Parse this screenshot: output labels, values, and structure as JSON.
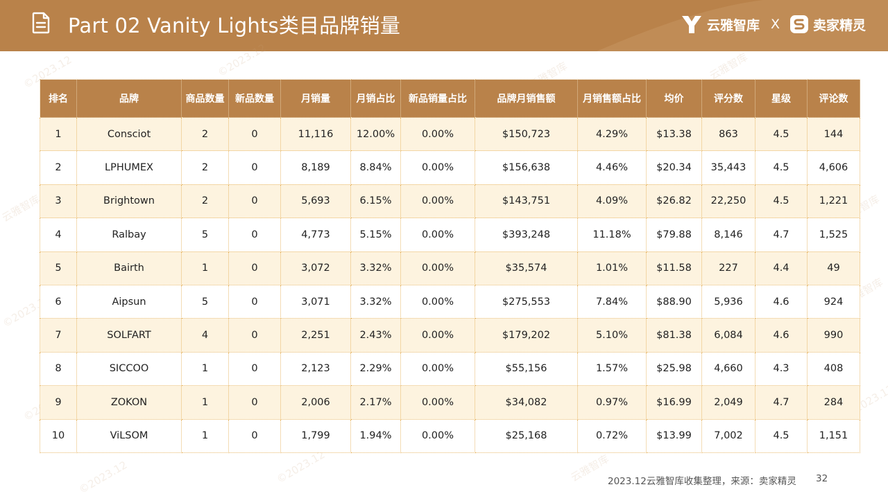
{
  "header": {
    "title": "Part 02 Vanity Lights类目品牌销量",
    "brand_left": "云雅智库",
    "brand_sep": "X",
    "brand_right": "卖家精灵"
  },
  "table": {
    "columns": [
      "排名",
      "品牌",
      "商品数量",
      "新品数量",
      "月销量",
      "月销占比",
      "新品销量占比",
      "品牌月销售额",
      "月销售额占比",
      "均价",
      "评分数",
      "星级",
      "评论数"
    ],
    "rows": [
      [
        "1",
        "Consciot",
        "2",
        "0",
        "11,116",
        "12.00%",
        "0.00%",
        "$150,723",
        "4.29%",
        "$13.38",
        "863",
        "4.5",
        "144"
      ],
      [
        "2",
        "LPHUMEX",
        "2",
        "0",
        "8,189",
        "8.84%",
        "0.00%",
        "$156,638",
        "4.46%",
        "$20.34",
        "35,443",
        "4.5",
        "4,606"
      ],
      [
        "3",
        "Brightown",
        "2",
        "0",
        "5,693",
        "6.15%",
        "0.00%",
        "$143,751",
        "4.09%",
        "$26.82",
        "22,250",
        "4.5",
        "1,221"
      ],
      [
        "4",
        "Ralbay",
        "5",
        "0",
        "4,773",
        "5.15%",
        "0.00%",
        "$393,248",
        "11.18%",
        "$79.88",
        "8,146",
        "4.7",
        "1,525"
      ],
      [
        "5",
        "Bairth",
        "1",
        "0",
        "3,072",
        "3.32%",
        "0.00%",
        "$35,574",
        "1.01%",
        "$11.58",
        "227",
        "4.4",
        "49"
      ],
      [
        "6",
        "Aipsun",
        "5",
        "0",
        "3,071",
        "3.32%",
        "0.00%",
        "$275,553",
        "7.84%",
        "$88.90",
        "5,936",
        "4.6",
        "924"
      ],
      [
        "7",
        "SOLFART",
        "4",
        "0",
        "2,251",
        "2.43%",
        "0.00%",
        "$179,202",
        "5.10%",
        "$81.38",
        "6,084",
        "4.6",
        "990"
      ],
      [
        "8",
        "SICCOO",
        "1",
        "0",
        "2,123",
        "2.29%",
        "0.00%",
        "$55,156",
        "1.57%",
        "$25.98",
        "4,660",
        "4.3",
        "408"
      ],
      [
        "9",
        "ZOKON",
        "1",
        "0",
        "2,006",
        "2.17%",
        "0.00%",
        "$34,082",
        "0.97%",
        "$16.99",
        "2,049",
        "4.7",
        "284"
      ],
      [
        "10",
        "ViLSOM",
        "1",
        "0",
        "1,799",
        "1.94%",
        "0.00%",
        "$25,168",
        "0.72%",
        "$13.99",
        "7,002",
        "4.5",
        "1,151"
      ]
    ]
  },
  "footer": {
    "source": "2023.12云雅智库收集整理，来源：卖家精灵",
    "page": "32"
  },
  "watermark": {
    "texts": [
      "©2023.12",
      "云雅智库"
    ]
  },
  "colors": {
    "accent": "#b9824a",
    "row_tint": "#fdf3df",
    "border": "#e8b96b"
  },
  "icons": [
    "document-icon",
    "yunya-logo-icon",
    "sellersprite-logo-icon"
  ]
}
